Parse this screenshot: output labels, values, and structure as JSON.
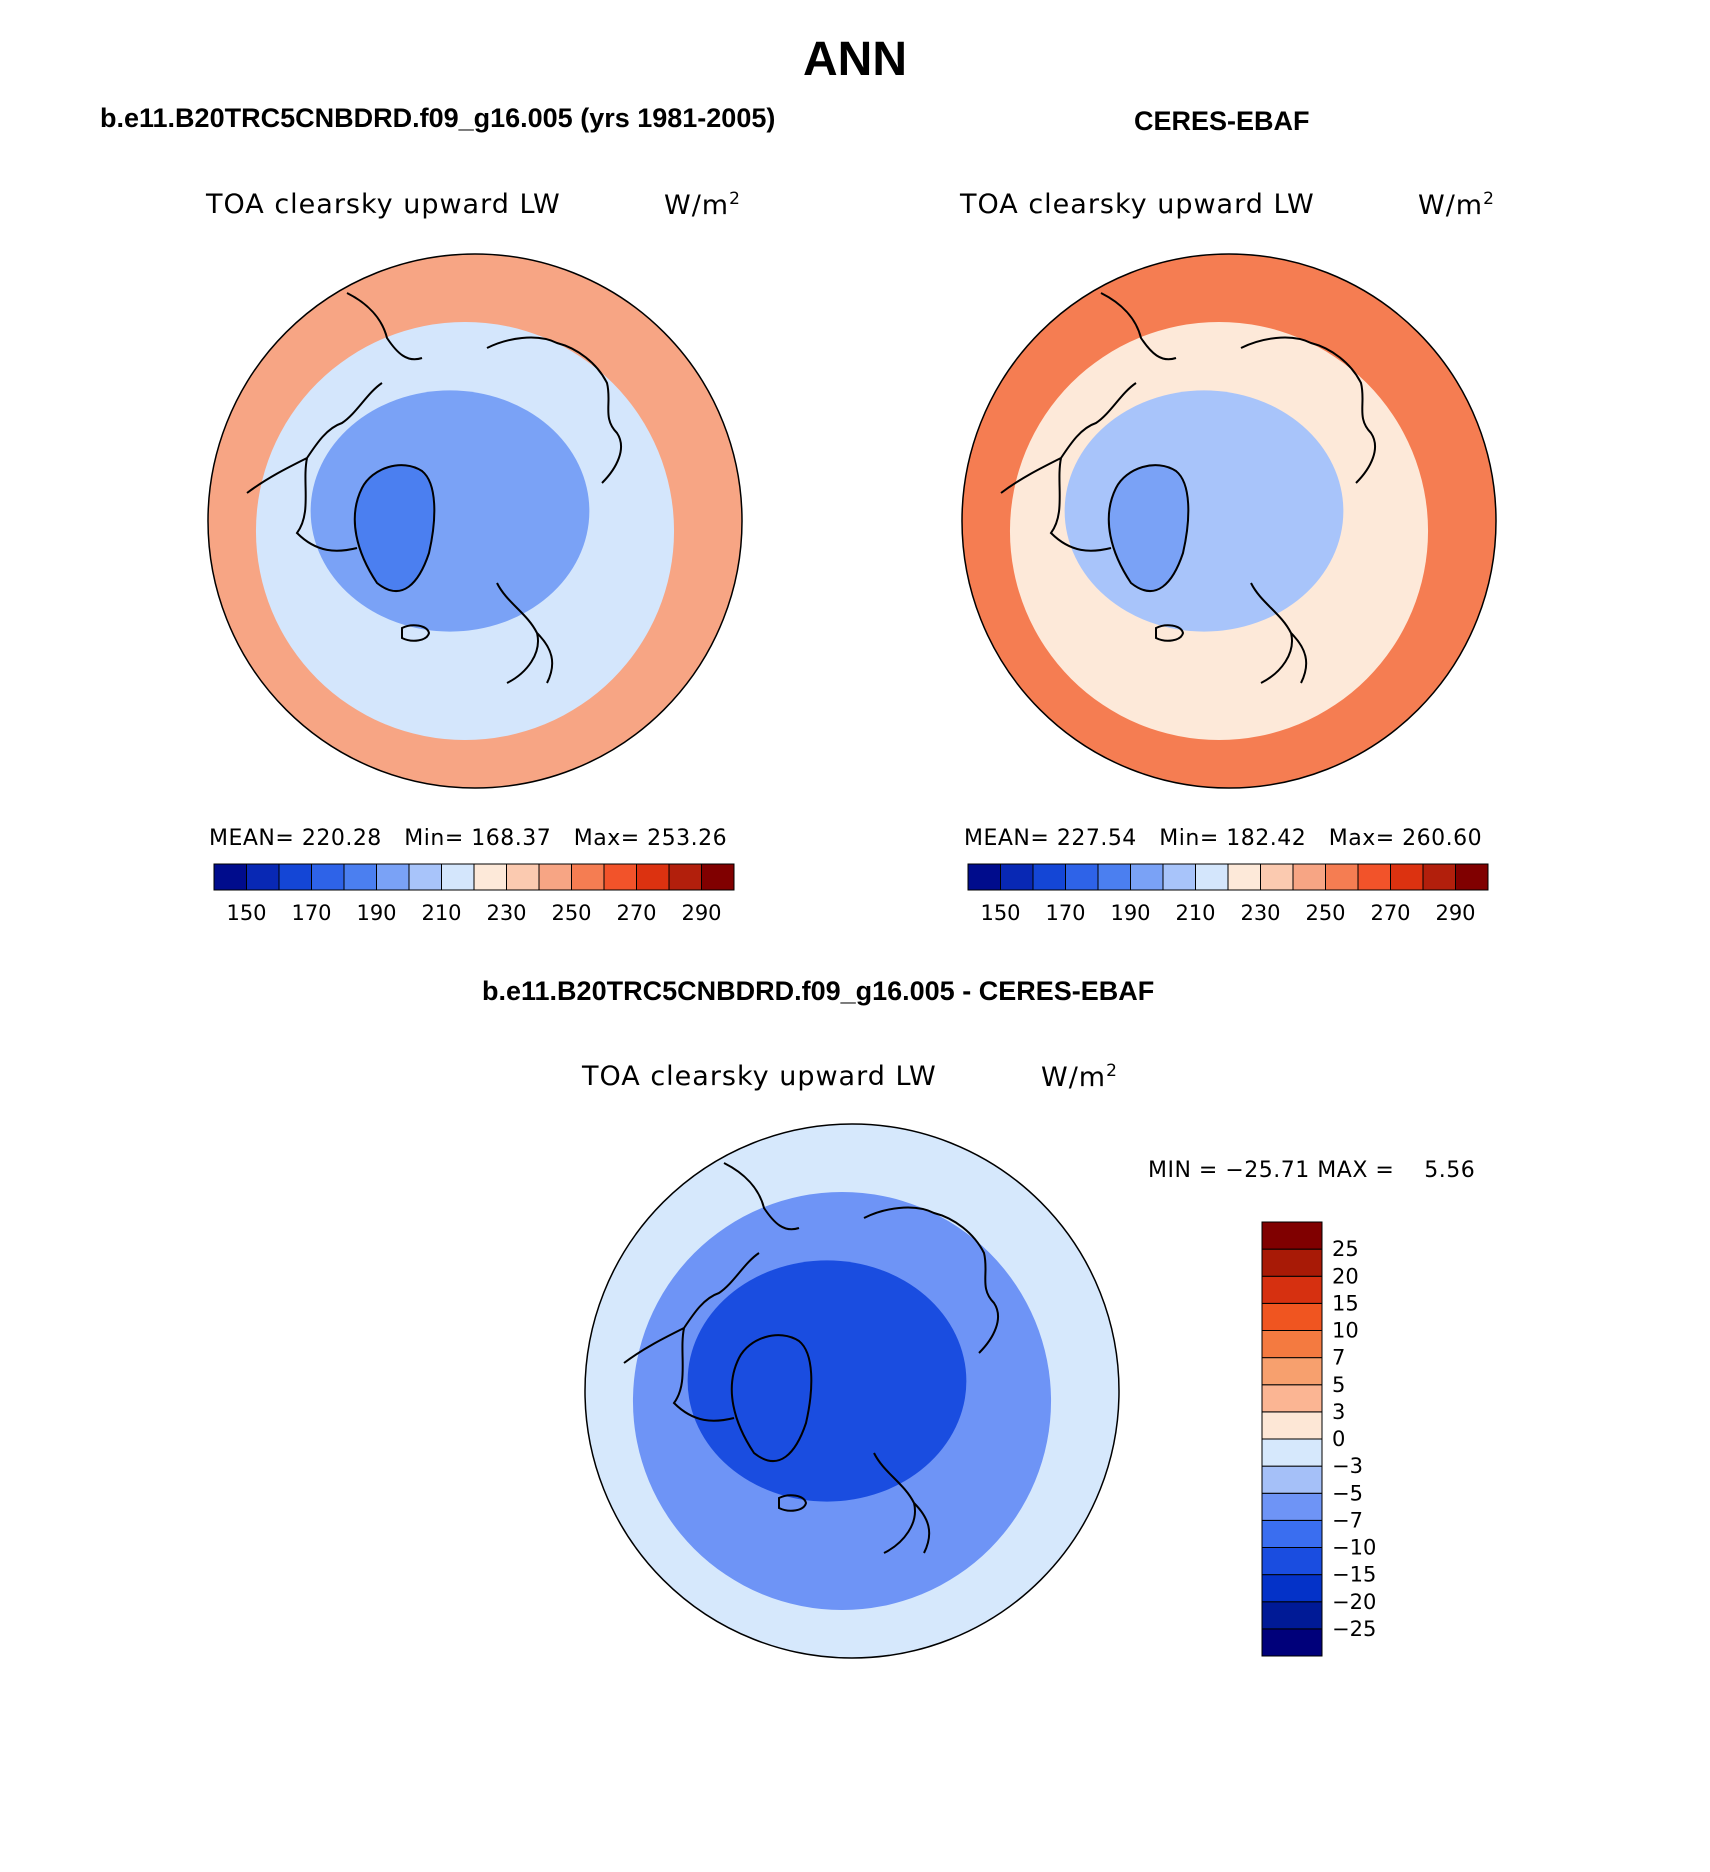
{
  "page": {
    "season": "ANN",
    "diff_title": "b.e11.B20TRC5CNBDRD.f09_g16.005 - CERES-EBAF"
  },
  "colors": {
    "coast": "#000000"
  },
  "chart_data": [
    {
      "type": "heatmap",
      "projection": "north polar stereographic",
      "title": "b.e11.B20TRC5CNBDRD.f09_g16.005 (yrs 1981-2005)",
      "left_label": "TOA clearsky upward LW",
      "right_label": "W/m",
      "units_exp": "2",
      "stats": {
        "mean_label": "MEAN=",
        "mean": "220.28",
        "min_label": "Min=",
        "min": "168.37",
        "max_label": "Max=",
        "max": "253.26"
      },
      "colorbar": {
        "orientation": "horizontal",
        "levels": [
          140,
          150,
          160,
          170,
          180,
          190,
          200,
          210,
          220,
          230,
          240,
          250,
          260,
          270,
          280,
          290
        ],
        "tick_labels": [
          "150",
          "170",
          "190",
          "210",
          "230",
          "250",
          "270",
          "290"
        ],
        "colors": [
          "#000c8c",
          "#0828b4",
          "#1446d6",
          "#2e63e8",
          "#4b7ff0",
          "#7aa2f6",
          "#a8c4fa",
          "#d4e6fc",
          "#fde9d9",
          "#fbcab0",
          "#f7a584",
          "#f57d52",
          "#f2532a",
          "#dc3210",
          "#b21f0c",
          "#800000"
        ]
      },
      "zones": {
        "pole": 198,
        "mid": 212,
        "south": 245,
        "greenland": 180
      }
    },
    {
      "type": "heatmap",
      "projection": "north polar stereographic",
      "title": "CERES-EBAF",
      "left_label": "TOA clearsky upward LW",
      "right_label": "W/m",
      "units_exp": "2",
      "stats": {
        "mean_label": "MEAN=",
        "mean": "227.54",
        "min_label": "Min=",
        "min": "182.42",
        "max_label": "Max=",
        "max": "260.60"
      },
      "colorbar": {
        "orientation": "horizontal",
        "levels": [
          140,
          150,
          160,
          170,
          180,
          190,
          200,
          210,
          220,
          230,
          240,
          250,
          260,
          270,
          280,
          290
        ],
        "tick_labels": [
          "150",
          "170",
          "190",
          "210",
          "230",
          "250",
          "270",
          "290"
        ],
        "colors": [
          "#000c8c",
          "#0828b4",
          "#1446d6",
          "#2e63e8",
          "#4b7ff0",
          "#7aa2f6",
          "#a8c4fa",
          "#d4e6fc",
          "#fde9d9",
          "#fbcab0",
          "#f7a584",
          "#f57d52",
          "#f2532a",
          "#dc3210",
          "#b21f0c",
          "#800000"
        ]
      },
      "zones": {
        "pole": 205,
        "mid": 222,
        "south": 258,
        "greenland": 190
      }
    },
    {
      "type": "heatmap",
      "projection": "north polar stereographic",
      "title": "",
      "left_label": "TOA clearsky upward LW",
      "right_label": "W/m",
      "units_exp": "2",
      "stats": {
        "min_label": "MIN =",
        "min": "−25.71",
        "max_label": "MAX =",
        "max": "5.56"
      },
      "colorbar": {
        "orientation": "vertical",
        "levels": [
          -30,
          -25,
          -20,
          -15,
          -10,
          -7,
          -5,
          -3,
          0,
          3,
          5,
          7,
          10,
          15,
          20,
          25,
          30
        ],
        "tick_labels": [
          "−25",
          "−20",
          "−15",
          "−10",
          "−7",
          "−5",
          "−3",
          "0",
          "3",
          "5",
          "7",
          "10",
          "15",
          "20",
          "25"
        ],
        "colors": [
          "#00007a",
          "#001a96",
          "#0432c8",
          "#1a4de0",
          "#3a6ef0",
          "#6e94f6",
          "#a5c0f8",
          "#d6e8fc",
          "#fde7d6",
          "#fbb593",
          "#f7a06e",
          "#f47a40",
          "#f05520",
          "#d63010",
          "#a81a06",
          "#800000"
        ]
      },
      "zones": {
        "pole": -11,
        "mid": -7,
        "south": -2,
        "greenland": -14
      }
    }
  ]
}
